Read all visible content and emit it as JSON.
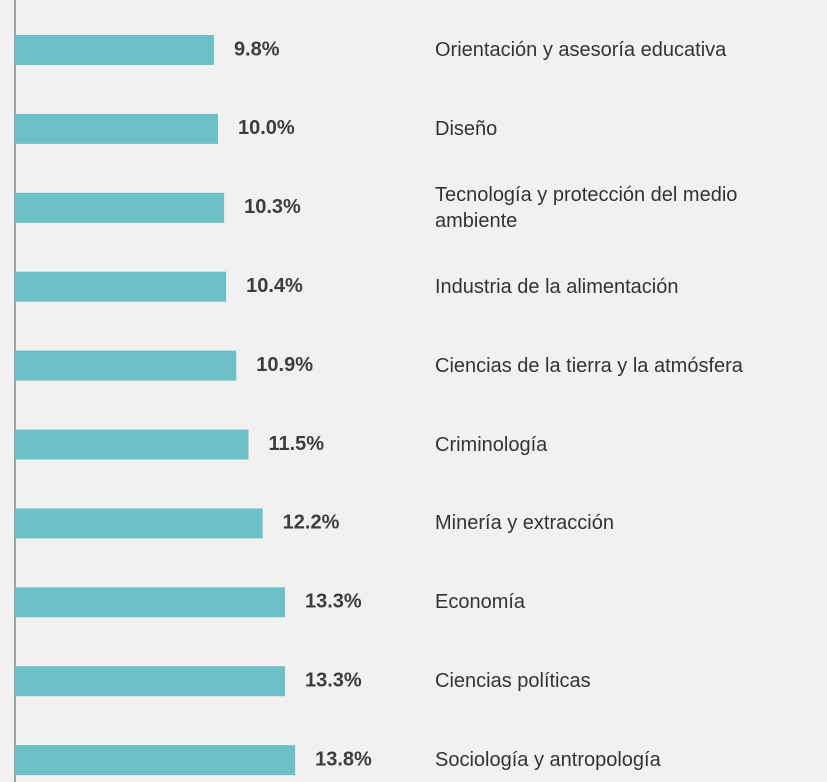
{
  "chart_data": {
    "type": "bar",
    "orientation": "horizontal",
    "categories": [
      "Orientación y asesoría educativa",
      "Diseño",
      "Tecnología y protección del medio ambiente",
      "Industria de la alimentación",
      "Ciencias de la tierra y la atmósfera",
      "Criminología",
      "Minería y extracción",
      "Economía",
      "Ciencias políticas",
      "Sociología y antropología"
    ],
    "values": [
      9.8,
      10.0,
      10.3,
      10.4,
      10.9,
      11.5,
      12.2,
      13.3,
      13.3,
      13.8
    ],
    "value_labels": [
      "9.8%",
      "10.0%",
      "10.3%",
      "10.4%",
      "10.9%",
      "11.5%",
      "12.2%",
      "13.3%",
      "13.3%",
      "13.8%"
    ],
    "color": "#6cc0c8",
    "xlim": [
      0,
      40
    ]
  }
}
